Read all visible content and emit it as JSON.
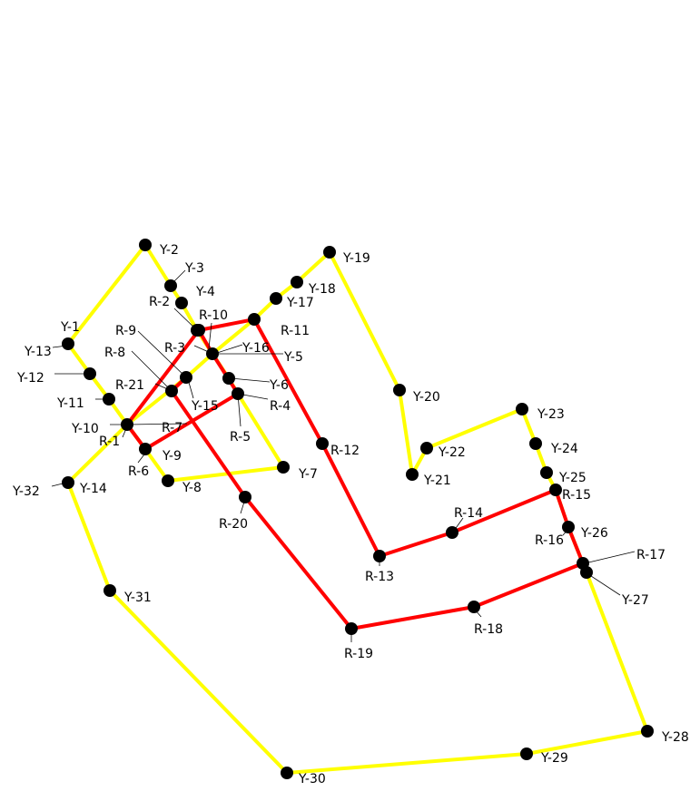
{
  "colors": {
    "yellow_path": "#ffff00",
    "red_path": "#ff0000",
    "node": "#000000",
    "background": "#ffffff"
  },
  "yellow_sequence": [
    "Y-1",
    "Y-2",
    "Y-3",
    "Y-4",
    "Y-5",
    "Y-6",
    "Y-7",
    "Y-8",
    "Y-9",
    "Y-10",
    "Y-11",
    "Y-12",
    "Y-13",
    "Y-14",
    "Y-15",
    "Y-16",
    "Y-17",
    "Y-18",
    "Y-19",
    "Y-20",
    "Y-21",
    "Y-22",
    "Y-23",
    "Y-24",
    "Y-25",
    "Y-26",
    "Y-27",
    "Y-28",
    "Y-29",
    "Y-30",
    "Y-31",
    "Y-32"
  ],
  "red_sequence": [
    "R-1",
    "R-2",
    "R-3",
    "R-4",
    "R-5",
    "R-6",
    "R-7",
    "R-8",
    "R-9",
    "R-10",
    "R-11",
    "R-12",
    "R-13",
    "R-14",
    "R-15",
    "R-16",
    "R-17",
    "R-18",
    "R-19",
    "R-20",
    "R-21"
  ],
  "nodes": [
    {
      "id": "Y-2",
      "label": "Y-2"
    },
    {
      "id": "Y-3",
      "label": "Y-3"
    },
    {
      "id": "R-2",
      "label": "R-2"
    },
    {
      "id": "Y-4",
      "label": "Y-4"
    },
    {
      "id": "R-10",
      "label": "R-10"
    },
    {
      "id": "R-11",
      "label": "R-11"
    },
    {
      "id": "Y-17",
      "label": "Y-17"
    },
    {
      "id": "Y-18",
      "label": "Y-18"
    },
    {
      "id": "Y-19",
      "label": "Y-19"
    },
    {
      "id": "Y-1",
      "label": "Y-1"
    },
    {
      "id": "Y-13",
      "label": "Y-13"
    },
    {
      "id": "R-9",
      "label": "R-9"
    },
    {
      "id": "R-3",
      "label": "R-3"
    },
    {
      "id": "Y-16",
      "label": "Y-16"
    },
    {
      "id": "Y-5",
      "label": "Y-5"
    },
    {
      "id": "R-8",
      "label": "R-8"
    },
    {
      "id": "Y-12",
      "label": "Y-12"
    },
    {
      "id": "R-21",
      "label": "R-21"
    },
    {
      "id": "Y-6",
      "label": "Y-6"
    },
    {
      "id": "Y-15",
      "label": "Y-15"
    },
    {
      "id": "R-4",
      "label": "R-4"
    },
    {
      "id": "Y-11",
      "label": "Y-11"
    },
    {
      "id": "Y-20",
      "label": "Y-20"
    },
    {
      "id": "Y-10",
      "label": "Y-10"
    },
    {
      "id": "R-7",
      "label": "R-7"
    },
    {
      "id": "R-1",
      "label": "R-1"
    },
    {
      "id": "R-5",
      "label": "R-5"
    },
    {
      "id": "Y-23",
      "label": "Y-23"
    },
    {
      "id": "R-12",
      "label": "R-12"
    },
    {
      "id": "Y-22",
      "label": "Y-22"
    },
    {
      "id": "Y-24",
      "label": "Y-24"
    },
    {
      "id": "Y-9",
      "label": "Y-9"
    },
    {
      "id": "R-6",
      "label": "R-6"
    },
    {
      "id": "Y-7",
      "label": "Y-7"
    },
    {
      "id": "Y-21",
      "label": "Y-21"
    },
    {
      "id": "Y-25",
      "label": "Y-25"
    },
    {
      "id": "Y-8",
      "label": "Y-8"
    },
    {
      "id": "Y-32",
      "label": "Y-32"
    },
    {
      "id": "Y-14",
      "label": "Y-14"
    },
    {
      "id": "R-15",
      "label": "R-15"
    },
    {
      "id": "R-20",
      "label": "R-20"
    },
    {
      "id": "R-14",
      "label": "R-14"
    },
    {
      "id": "Y-26",
      "label": "Y-26"
    },
    {
      "id": "R-16",
      "label": "R-16"
    },
    {
      "id": "R-17",
      "label": "R-17"
    },
    {
      "id": "R-13",
      "label": "R-13"
    },
    {
      "id": "Y-27",
      "label": "Y-27"
    },
    {
      "id": "Y-31",
      "label": "Y-31"
    },
    {
      "id": "R-18",
      "label": "R-18"
    },
    {
      "id": "R-19",
      "label": "R-19"
    },
    {
      "id": "Y-28",
      "label": "Y-28"
    },
    {
      "id": "Y-29",
      "label": "Y-29"
    },
    {
      "id": "Y-30",
      "label": "Y-30"
    }
  ]
}
